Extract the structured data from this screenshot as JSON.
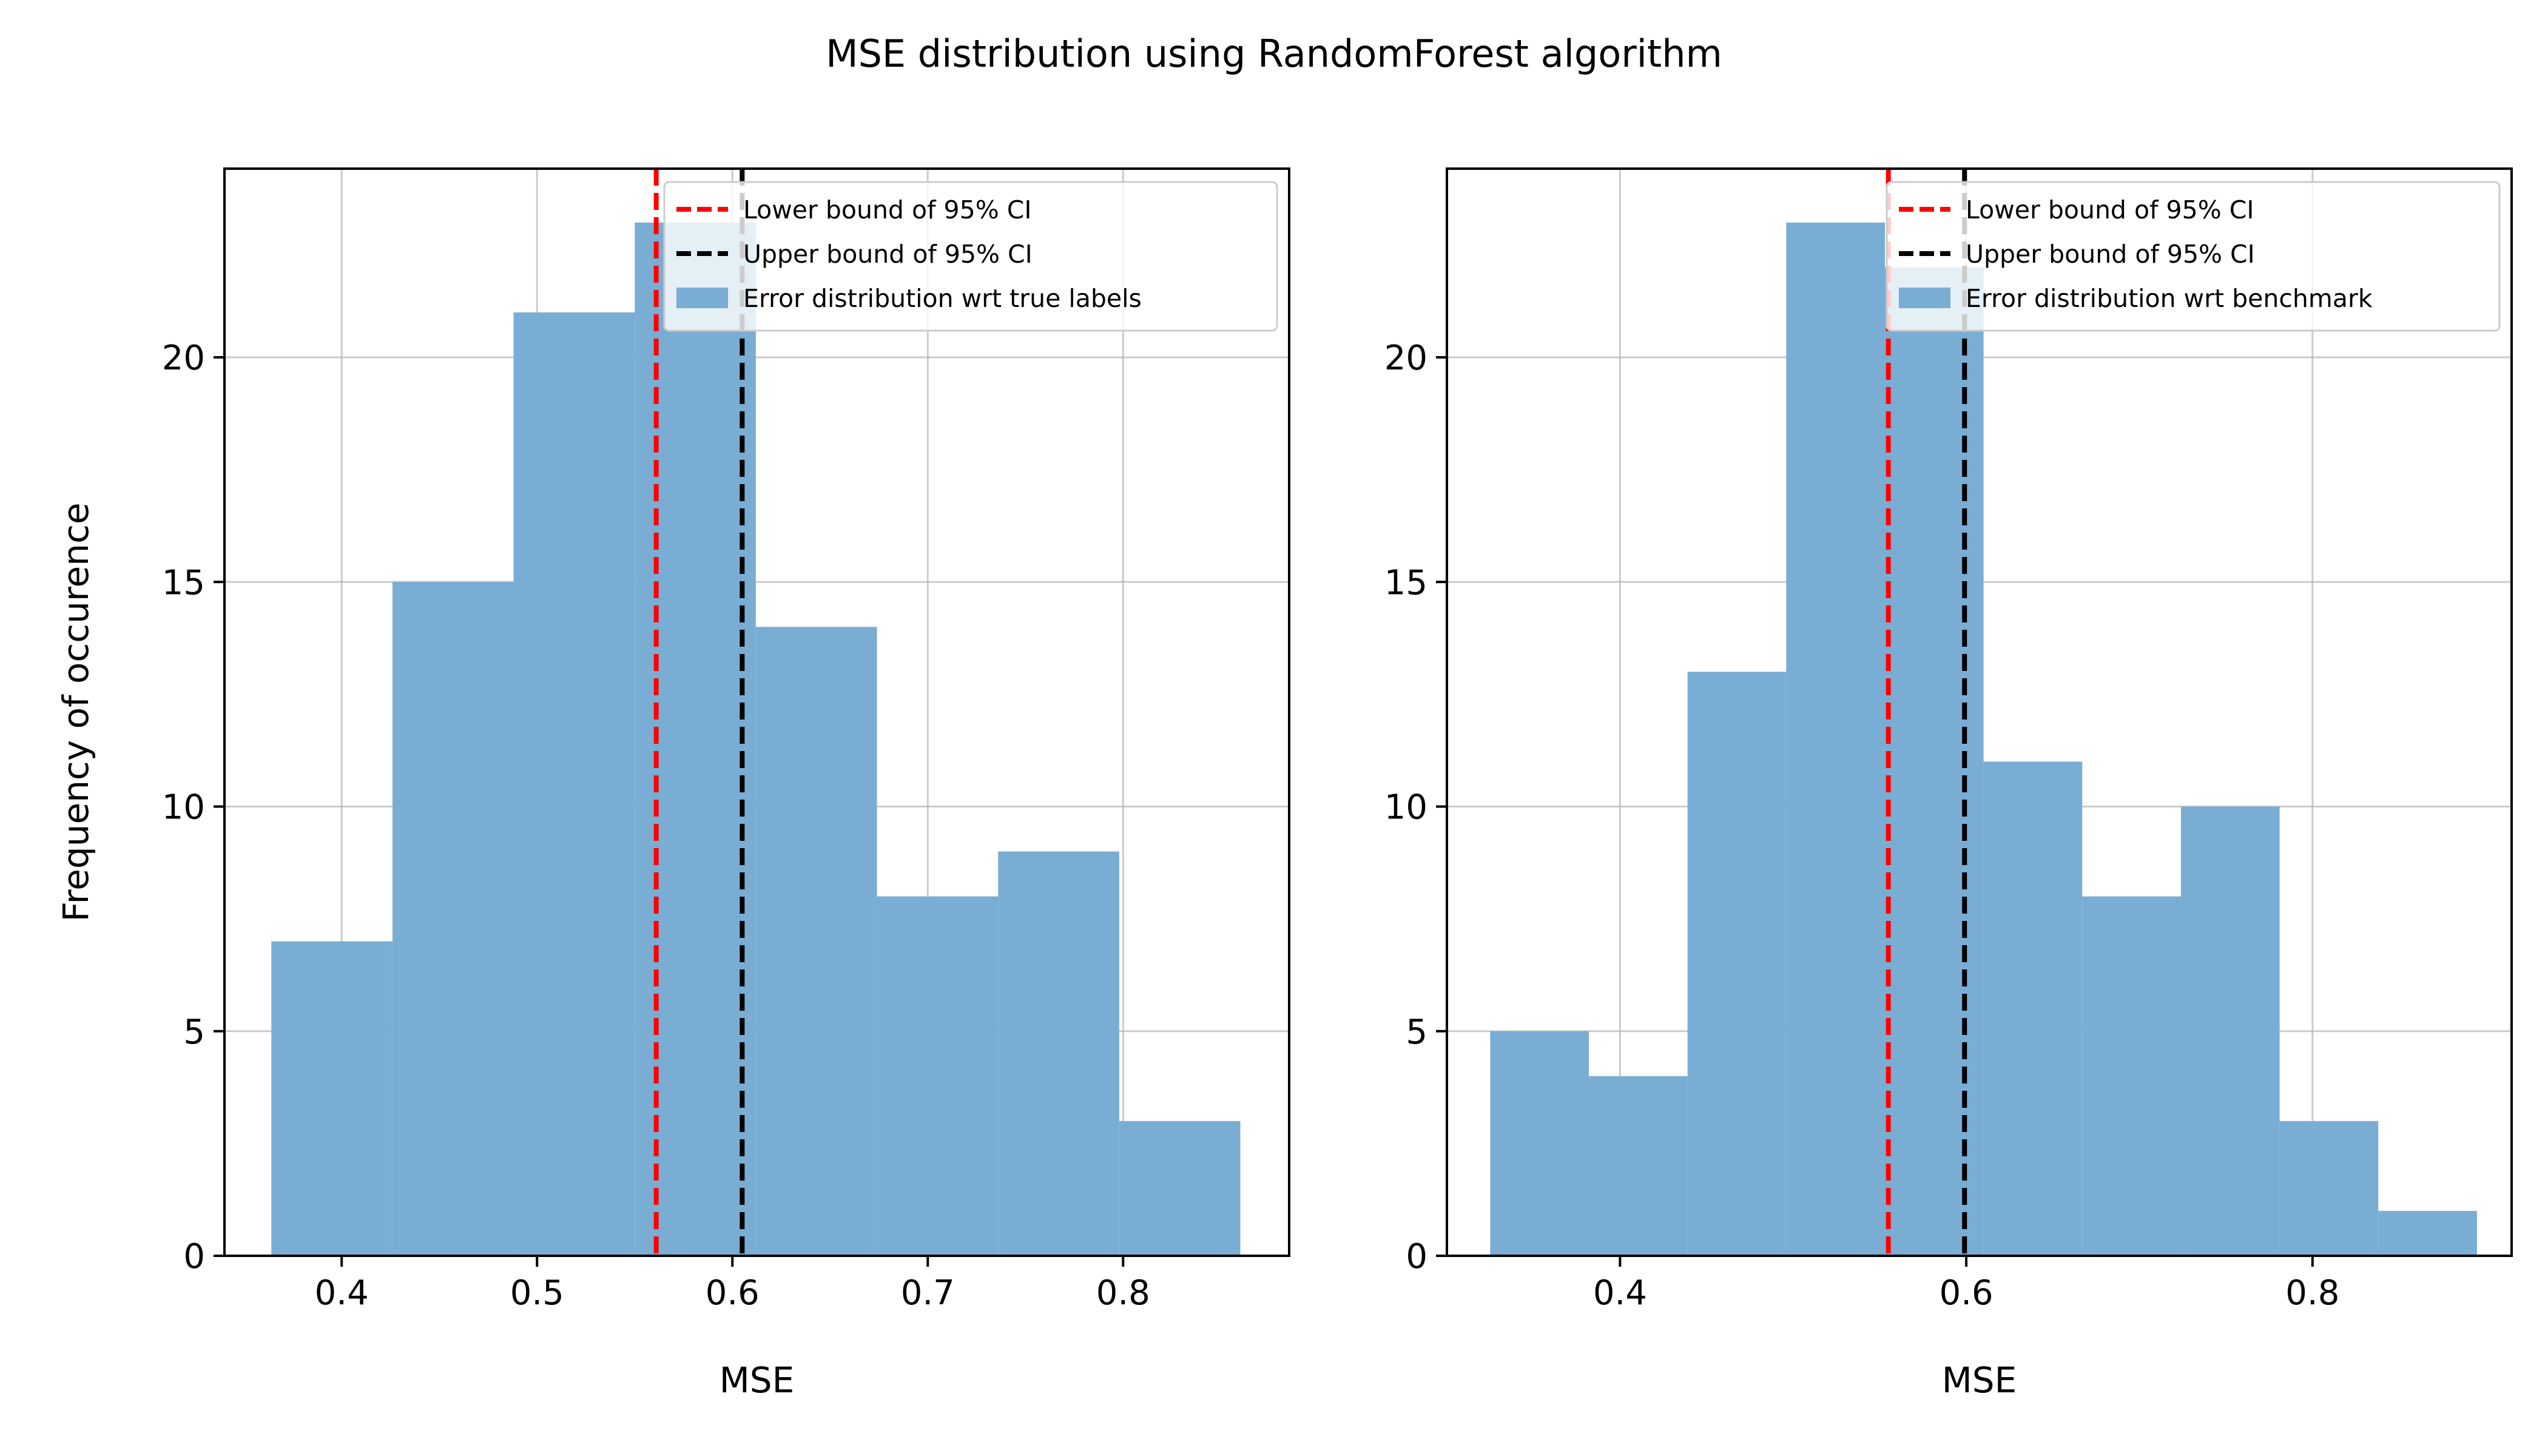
{
  "figure": {
    "title": "MSE distribution using RandomForest algorithm"
  },
  "chart_data": [
    {
      "type": "bar",
      "subtype": "histogram",
      "xlabel": "MSE",
      "ylabel": "Frequency of occurence",
      "xlim": [
        0.34,
        0.885
      ],
      "ylim": [
        0,
        24.2
      ],
      "xticks": [
        0.4,
        0.5,
        0.6,
        0.7,
        0.8
      ],
      "xtick_labels": [
        "0.4",
        "0.5",
        "0.6",
        "0.7",
        "0.8"
      ],
      "yticks": [
        0,
        5,
        10,
        15,
        20
      ],
      "ytick_labels": [
        "0",
        "5",
        "10",
        "15",
        "20"
      ],
      "grid": true,
      "bins": [
        0.364,
        0.426,
        0.488,
        0.55,
        0.612,
        0.674,
        0.736,
        0.798,
        0.86
      ],
      "counts": [
        7,
        15,
        21,
        23,
        14,
        8,
        9,
        3
      ],
      "bar_color": "#7aadd3",
      "vlines": [
        {
          "label": "Lower bound of 95% CI",
          "x": 0.561,
          "color": "#ff0000"
        },
        {
          "label": "Upper bound of 95% CI",
          "x": 0.605,
          "color": "#000000"
        }
      ],
      "hist_label": "Error distribution wrt true labels",
      "legend": "top-right"
    },
    {
      "type": "bar",
      "subtype": "histogram",
      "xlabel": "MSE",
      "ylabel": "",
      "xlim": [
        0.3,
        0.915
      ],
      "ylim": [
        0,
        24.2
      ],
      "xticks": [
        0.4,
        0.6,
        0.8
      ],
      "xtick_labels": [
        "0.4",
        "0.6",
        "0.8"
      ],
      "yticks": [
        0,
        5,
        10,
        15,
        20
      ],
      "ytick_labels": [
        "0",
        "5",
        "10",
        "15",
        "20"
      ],
      "grid": true,
      "bins": [
        0.325,
        0.382,
        0.439,
        0.496,
        0.553,
        0.61,
        0.667,
        0.724,
        0.781,
        0.838,
        0.895
      ],
      "counts": [
        5,
        4,
        13,
        23,
        22,
        11,
        8,
        10,
        3,
        1
      ],
      "bar_color": "#7aadd3",
      "vlines": [
        {
          "label": "Lower bound of 95% CI",
          "x": 0.555,
          "color": "#ff0000"
        },
        {
          "label": "Upper bound of 95% CI",
          "x": 0.599,
          "color": "#000000"
        }
      ],
      "hist_label": "Error distribution wrt benchmark",
      "legend": "top-right"
    }
  ]
}
